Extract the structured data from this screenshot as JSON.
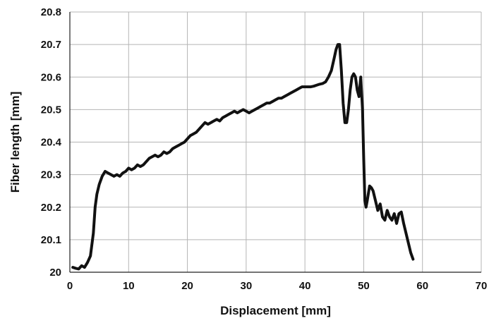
{
  "chart_data": {
    "type": "line",
    "title": "",
    "xlabel": "Displacement [mm]",
    "ylabel": "Fiber length [mm]",
    "xlim": [
      0,
      70
    ],
    "ylim": [
      20,
      20.8
    ],
    "x_ticks": [
      0,
      10,
      20,
      30,
      40,
      50,
      60,
      70
    ],
    "y_ticks": [
      20,
      20.1,
      20.2,
      20.3,
      20.4,
      20.5,
      20.6,
      20.7,
      20.8
    ],
    "x_tick_labels": [
      "0",
      "10",
      "20",
      "30",
      "40",
      "50",
      "60",
      "70"
    ],
    "y_tick_labels": [
      "20",
      "20.1",
      "20.2",
      "20.3",
      "20.4",
      "20.5",
      "20.6",
      "20.7",
      "20.8"
    ],
    "grid": true,
    "legend": "none",
    "line_color": "#111111",
    "series": [
      {
        "x": [
          0.5,
          1.0,
          1.5,
          2.0,
          2.5,
          3.0,
          3.5,
          4.0,
          4.3,
          4.6,
          5.0,
          5.5,
          6.0,
          6.5,
          7.0,
          7.5,
          8.0,
          8.5,
          9.0,
          9.5,
          10.0,
          10.5,
          11.0,
          11.5,
          12.0,
          12.5,
          13.0,
          13.5,
          14.0,
          14.5,
          15.0,
          15.5,
          16.0,
          16.5,
          17.0,
          17.5,
          18.0,
          18.5,
          19.0,
          19.5,
          20.0,
          20.5,
          21.0,
          21.5,
          22.0,
          22.5,
          23.0,
          23.5,
          24.0,
          24.5,
          25.0,
          25.5,
          26.0,
          26.5,
          27.0,
          27.5,
          28.0,
          28.5,
          29.0,
          29.5,
          30.0,
          30.5,
          31.0,
          31.5,
          32.0,
          32.5,
          33.0,
          33.5,
          34.0,
          34.5,
          35.0,
          35.5,
          36.0,
          36.5,
          37.0,
          37.5,
          38.0,
          38.5,
          39.0,
          39.5,
          40.0,
          40.5,
          41.0,
          41.5,
          42.0,
          42.5,
          43.0,
          43.5,
          44.0,
          44.5,
          45.0,
          45.3,
          45.6,
          45.9,
          46.2,
          46.5,
          46.8,
          47.1,
          47.4,
          47.7,
          48.0,
          48.3,
          48.6,
          48.9,
          49.2,
          49.5,
          49.8,
          50.0,
          50.2,
          50.4,
          50.6,
          51.0,
          51.3,
          51.6,
          52.0,
          52.4,
          52.8,
          53.2,
          53.6,
          54.0,
          54.4,
          54.8,
          55.2,
          55.6,
          56.0,
          56.4,
          56.8,
          57.2,
          57.6,
          58.0,
          58.4
        ],
        "y": [
          20.015,
          20.012,
          20.01,
          20.02,
          20.015,
          20.03,
          20.05,
          20.12,
          20.2,
          20.24,
          20.27,
          20.295,
          20.31,
          20.305,
          20.3,
          20.295,
          20.3,
          20.295,
          20.305,
          20.31,
          20.32,
          20.315,
          20.32,
          20.33,
          20.325,
          20.33,
          20.34,
          20.35,
          20.355,
          20.36,
          20.355,
          20.36,
          20.37,
          20.365,
          20.37,
          20.38,
          20.385,
          20.39,
          20.395,
          20.4,
          20.41,
          20.42,
          20.425,
          20.43,
          20.44,
          20.45,
          20.46,
          20.455,
          20.46,
          20.465,
          20.47,
          20.465,
          20.475,
          20.48,
          20.485,
          20.49,
          20.495,
          20.49,
          20.495,
          20.5,
          20.495,
          20.49,
          20.495,
          20.5,
          20.505,
          20.51,
          20.515,
          20.52,
          20.52,
          20.525,
          20.53,
          20.535,
          20.535,
          20.54,
          20.545,
          20.55,
          20.555,
          20.56,
          20.565,
          20.57,
          20.57,
          20.57,
          20.57,
          20.572,
          20.575,
          20.578,
          20.58,
          20.585,
          20.6,
          20.62,
          20.66,
          20.685,
          20.7,
          20.7,
          20.62,
          20.52,
          20.46,
          20.46,
          20.5,
          20.56,
          20.6,
          20.61,
          20.6,
          20.56,
          20.54,
          20.6,
          20.5,
          20.35,
          20.22,
          20.2,
          20.22,
          20.265,
          20.26,
          20.25,
          20.22,
          20.19,
          20.21,
          20.17,
          20.16,
          20.19,
          20.17,
          20.16,
          20.18,
          20.15,
          20.18,
          20.185,
          20.15,
          20.12,
          20.09,
          20.06,
          20.04
        ]
      }
    ]
  }
}
